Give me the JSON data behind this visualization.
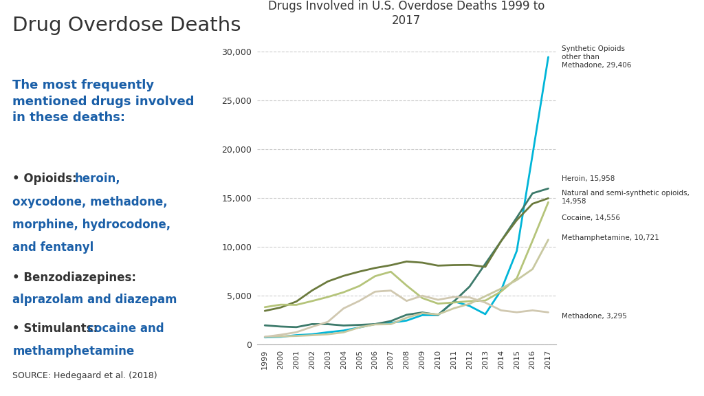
{
  "title": "Drugs Involved in U.S. Overdose Deaths 1999 to\n2017",
  "left_title": "Drug Overdose Deaths",
  "source": "SOURCE: Hedegaard et al. (2018)",
  "years": [
    1999,
    2000,
    2001,
    2002,
    2003,
    2004,
    2005,
    2006,
    2007,
    2008,
    2009,
    2010,
    2011,
    2012,
    2013,
    2014,
    2015,
    2016,
    2017
  ],
  "series": {
    "synthetic_opioids": {
      "label": "Synthetic Opioids\nother than\nMethadone, 29,406",
      "color": "#00b5d8",
      "values": [
        730,
        782,
        957,
        1048,
        1257,
        1431,
        1742,
        2089,
        2213,
        2448,
        3007,
        3007,
        4418,
        3946,
        3105,
        5544,
        9580,
        19413,
        29406
      ]
    },
    "heroin": {
      "label": "Heroin, 15,958",
      "color": "#3d7a6b",
      "values": [
        1960,
        1842,
        1779,
        2089,
        2080,
        1946,
        2009,
        2088,
        2399,
        3041,
        3278,
        3036,
        4397,
        5925,
        8257,
        10574,
        12989,
        15469,
        15958
      ]
    },
    "natural_semi_synthetic": {
      "label": "Natural and semi-synthetic opioids,\n14,958",
      "color": "#6b7a3d",
      "values": [
        3442,
        3785,
        4397,
        5528,
        6455,
        7024,
        7459,
        7831,
        8115,
        8492,
        8374,
        8071,
        8128,
        8146,
        7942,
        10574,
        12727,
        14400,
        14958
      ]
    },
    "cocaine": {
      "label": "Cocaine, 14,556",
      "color": "#b5c47a",
      "values": [
        3822,
        4076,
        4057,
        4447,
        4864,
        5346,
        5983,
        6992,
        7448,
        6040,
        4753,
        4183,
        4300,
        4435,
        4496,
        5415,
        6784,
        10619,
        14556
      ]
    },
    "methamphetamine": {
      "label": "Methamphetamine, 10,721",
      "color": "#c8c8a0",
      "values": [
        786,
        830,
        879,
        949,
        1048,
        1246,
        1752,
        2054,
        2080,
        2736,
        3206,
        3083,
        3700,
        4162,
        4944,
        5716,
        6597,
        7711,
        10721
      ]
    },
    "methadone": {
      "label": "Methadone, 3,295",
      "color": "#d0c8b0",
      "values": [
        784,
        999,
        1258,
        1812,
        2318,
        3695,
        4462,
        5406,
        5518,
        4462,
        4991,
        4577,
        4865,
        4821,
        4290,
        3495,
        3300,
        3493,
        3295
      ]
    }
  },
  "ylim": [
    0,
    32000
  ],
  "yticks": [
    0,
    5000,
    10000,
    15000,
    20000,
    25000,
    30000
  ],
  "ytick_labels": [
    "0",
    "5,000",
    "10,000",
    "15,000",
    "20,000",
    "25,000",
    "30,000"
  ],
  "bg_color": "#ffffff",
  "text_blue": "#1a5fa8",
  "text_dark": "#333333",
  "ann_texts": {
    "synthetic_opioids": "Synthetic Opioids\nother than\nMethadone, 29,406",
    "heroin": "Heroin, 15,958",
    "natural_semi_synthetic": "Natural and semi-synthetic opioids,\n14,958",
    "cocaine": "Cocaine, 14,556",
    "methamphetamine": "Methamphetamine, 10,721",
    "methadone": "Methadone, 3,295"
  }
}
